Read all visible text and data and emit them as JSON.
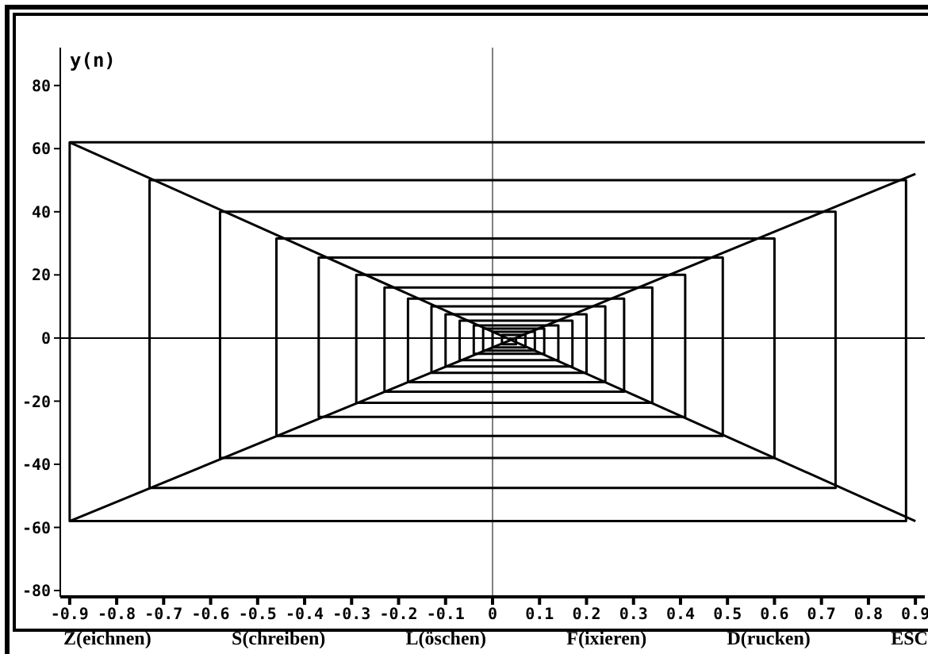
{
  "chart_data": {
    "type": "line",
    "ylabel": "y(n)",
    "xlim": [
      -0.92,
      0.92
    ],
    "xticks": [
      -0.9,
      -0.8,
      -0.7,
      -0.6,
      -0.5,
      -0.4,
      -0.3,
      -0.2,
      -0.1,
      0,
      0.1,
      0.2,
      0.3,
      0.4,
      0.5,
      0.6,
      0.7,
      0.8,
      0.9
    ],
    "ylim": [
      -82,
      92
    ],
    "yticks": [
      -80,
      -60,
      -40,
      -20,
      0,
      20,
      40,
      60,
      80
    ],
    "grid": false,
    "marker": "none",
    "line_style": "solid",
    "ref_lines": [
      {
        "axis": "x",
        "value": 0,
        "color": "#808080"
      },
      {
        "axis": "y",
        "value": 0,
        "color": "#000000"
      }
    ],
    "series": [
      {
        "color": "#000000",
        "x": [
          -0.9,
          0.9
        ],
        "values": [
          62,
          -58
        ]
      },
      {
        "color": "#000000",
        "x": [
          -0.9,
          0.9
        ],
        "values": [
          -58,
          52
        ]
      },
      {
        "color": "#000000",
        "x": [
          0.92,
          -0.9,
          -0.9,
          0.88,
          0.88,
          -0.73,
          -0.73,
          0.73,
          0.73,
          -0.58,
          -0.58,
          0.6,
          0.6,
          -0.46,
          -0.46,
          0.49,
          0.49,
          -0.37,
          -0.37,
          0.41,
          0.41,
          -0.29,
          -0.29,
          0.34,
          0.34,
          -0.23,
          -0.23,
          0.28,
          0.28,
          -0.18,
          -0.18,
          0.24,
          0.24,
          -0.13,
          -0.13,
          0.2,
          0.2,
          -0.1,
          -0.1,
          0.17,
          0.17,
          -0.07,
          -0.07,
          0.14,
          0.14,
          -0.04,
          -0.04,
          0.11,
          0.11,
          -0.02,
          -0.02,
          0.09,
          0.09,
          0,
          0,
          0.07,
          0.07,
          0.02,
          0.02,
          0.05,
          0.05
        ],
        "values": [
          62,
          62,
          -58,
          -58,
          50,
          50,
          -47.5,
          -47.5,
          40,
          40,
          -38,
          -38,
          31.5,
          31.5,
          -31,
          -31,
          25.5,
          25.5,
          -25,
          -25,
          20,
          20,
          -20.5,
          -20.5,
          16,
          16,
          -17,
          -17,
          12.5,
          12.5,
          -14,
          -14,
          10,
          10,
          -11,
          -11,
          7.5,
          7.5,
          -9,
          -9,
          5.5,
          5.5,
          -7,
          -7,
          4,
          4,
          -5,
          -5,
          3,
          3,
          -4,
          -4,
          2,
          2,
          -3,
          -3,
          1,
          1,
          -2,
          -2,
          0
        ]
      }
    ],
    "annotations": [
      "Z(eichnen)",
      "S(chreiben)",
      "L(öschen)",
      "F(ixieren)",
      "D(rucken)",
      "ESC"
    ]
  }
}
